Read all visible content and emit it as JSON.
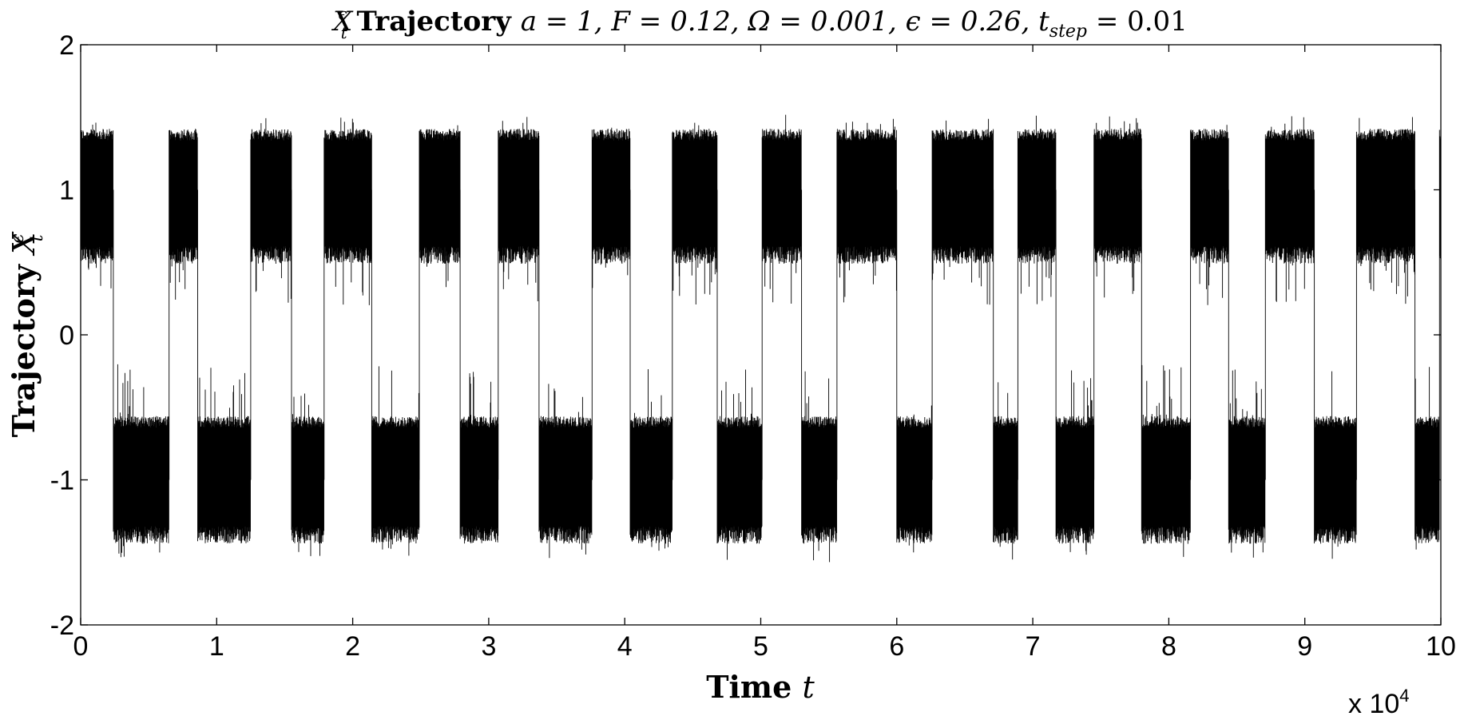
{
  "chart_data": {
    "type": "line",
    "title": {
      "symbol": "X",
      "symbol_sub": "t",
      "symbol_sup": "ϵ",
      "bold": " Trajectory ",
      "params": "a = 1, F = 0.12, Ω = 0.001, ϵ = 0.26, ",
      "tstep_symbol": "t",
      "tstep_sub": "step",
      "tstep_value": " = 0.01"
    },
    "xlabel": {
      "bold": "Time ",
      "symbol": "t"
    },
    "ylabel": {
      "bold": "Trajectory ",
      "symbol": "X",
      "symbol_sub": "t",
      "symbol_sup": "ϵ"
    },
    "xlim": [
      0,
      100000
    ],
    "ylim": [
      -2,
      2
    ],
    "x_ticks": [
      0,
      10000,
      20000,
      30000,
      40000,
      50000,
      60000,
      70000,
      80000,
      90000,
      100000
    ],
    "x_tick_labels": [
      "0",
      "1",
      "2",
      "3",
      "4",
      "5",
      "6",
      "7",
      "8",
      "9",
      "10"
    ],
    "y_ticks": [
      -2,
      -1,
      0,
      1,
      2
    ],
    "y_tick_labels": [
      "-2",
      "-1",
      "0",
      "1",
      "2"
    ],
    "x_multiplier": "x 10",
    "x_multiplier_exp": "4",
    "grid": false,
    "line_color": "#000000",
    "series": [
      {
        "state_segments": [
          {
            "x_start": 0,
            "x_end": 2400,
            "level": 1
          },
          {
            "x_start": 2400,
            "x_end": 6500,
            "level": -1
          },
          {
            "x_start": 6500,
            "x_end": 8600,
            "level": 1
          },
          {
            "x_start": 8600,
            "x_end": 12500,
            "level": -1
          },
          {
            "x_start": 12500,
            "x_end": 15500,
            "level": 1
          },
          {
            "x_start": 15500,
            "x_end": 17900,
            "level": -1
          },
          {
            "x_start": 17900,
            "x_end": 21400,
            "level": 1
          },
          {
            "x_start": 21400,
            "x_end": 24900,
            "level": -1
          },
          {
            "x_start": 24900,
            "x_end": 27900,
            "level": 1
          },
          {
            "x_start": 27900,
            "x_end": 30700,
            "level": -1
          },
          {
            "x_start": 30700,
            "x_end": 33700,
            "level": 1
          },
          {
            "x_start": 33700,
            "x_end": 37600,
            "level": -1
          },
          {
            "x_start": 37600,
            "x_end": 40400,
            "level": 1
          },
          {
            "x_start": 40400,
            "x_end": 43500,
            "level": -1
          },
          {
            "x_start": 43500,
            "x_end": 46800,
            "level": 1
          },
          {
            "x_start": 46800,
            "x_end": 50100,
            "level": -1
          },
          {
            "x_start": 50100,
            "x_end": 53000,
            "level": 1
          },
          {
            "x_start": 53000,
            "x_end": 55600,
            "level": -1
          },
          {
            "x_start": 55600,
            "x_end": 60000,
            "level": 1
          },
          {
            "x_start": 60000,
            "x_end": 62600,
            "level": -1
          },
          {
            "x_start": 62600,
            "x_end": 67100,
            "level": 1
          },
          {
            "x_start": 67100,
            "x_end": 68900,
            "level": -1
          },
          {
            "x_start": 68900,
            "x_end": 71700,
            "level": 1
          },
          {
            "x_start": 71700,
            "x_end": 74500,
            "level": -1
          },
          {
            "x_start": 74500,
            "x_end": 78000,
            "level": 1
          },
          {
            "x_start": 78000,
            "x_end": 81600,
            "level": -1
          },
          {
            "x_start": 81600,
            "x_end": 84400,
            "level": 1
          },
          {
            "x_start": 84400,
            "x_end": 87100,
            "level": -1
          },
          {
            "x_start": 87100,
            "x_end": 90700,
            "level": 1
          },
          {
            "x_start": 90700,
            "x_end": 93800,
            "level": -1
          },
          {
            "x_start": 93800,
            "x_end": 98100,
            "level": 1
          },
          {
            "x_start": 98100,
            "x_end": 99900,
            "level": -1
          },
          {
            "x_start": 99900,
            "x_end": 100000,
            "level": 1
          }
        ],
        "upper_state": {
          "center": 1.0,
          "band_low": 0.55,
          "band_high": 1.38,
          "spike_min": 0.2,
          "spike_max": 1.52
        },
        "lower_state": {
          "center": -1.0,
          "band_low": -1.38,
          "band_high": -0.6,
          "spike_min": -1.57,
          "spike_max": -0.2
        }
      }
    ]
  }
}
